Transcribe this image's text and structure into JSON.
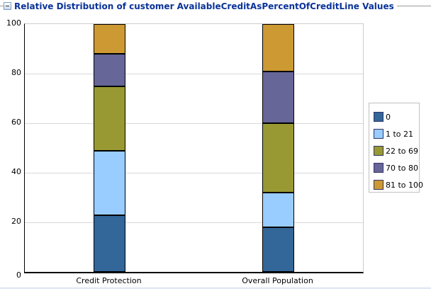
{
  "panel": {
    "title": "Relative Distribution of customer AvailableCreditAsPercentOfCreditLine Values",
    "collapse_icon": "minus-box-icon"
  },
  "chart_data": {
    "type": "bar",
    "subtype": "stacked-vertical",
    "title": "Relative Distribution of customer AvailableCreditAsPercentOfCreditLine Values",
    "categories": [
      "Credit Protection",
      "Overall Population"
    ],
    "series": [
      {
        "name": "0",
        "color": "#336699",
        "values": [
          23,
          18
        ]
      },
      {
        "name": "1 to 21",
        "color": "#99CCFF",
        "values": [
          26,
          14
        ]
      },
      {
        "name": "22 to 69",
        "color": "#999933",
        "values": [
          26,
          28
        ]
      },
      {
        "name": "70 to 80",
        "color": "#666699",
        "values": [
          13,
          21
        ]
      },
      {
        "name": "81 to 100",
        "color": "#CC9933",
        "values": [
          12,
          19
        ]
      }
    ],
    "xlabel": "",
    "ylabel": "",
    "ylim": [
      0,
      100
    ],
    "yticks": [
      0,
      20,
      40,
      60,
      80,
      100
    ],
    "grid": true,
    "legend_position": "right",
    "legend_entries": [
      "0",
      "1 to 21",
      "22 to 69",
      "70 to 80",
      "81 to 100"
    ]
  },
  "colors": {
    "title_text": "#0a3399",
    "axis_line": "#000000",
    "gridline": "#d9d9d9",
    "header_rule": "#9c9c9c",
    "legend_border": "#c0c0c0",
    "swatch_border": "#333366",
    "bottom_rule": "#dbe5f1"
  }
}
